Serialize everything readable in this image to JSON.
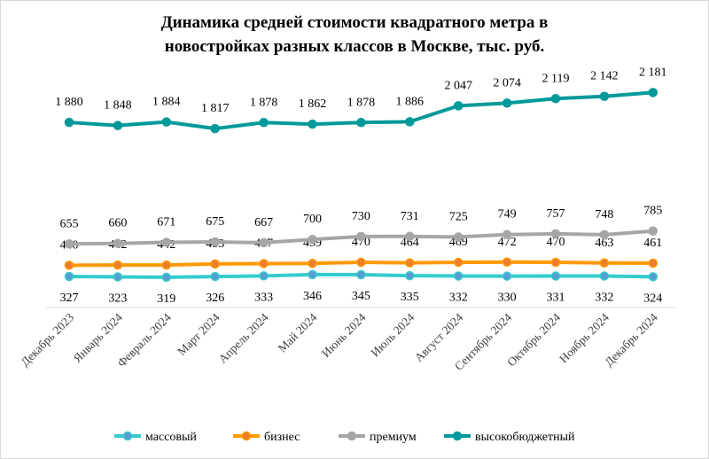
{
  "chart_data": {
    "type": "line",
    "title": [
      "Динамика средней стоимости квадратного метра в",
      "новостройках разных классов в Москве, тыс. руб."
    ],
    "categories": [
      "Декабрь 2023",
      "Январь 2024",
      "Февраль 2024",
      "Март 2024",
      "Апрель 2024",
      "Май 2024",
      "Июнь 2024",
      "Июль 2024",
      "Август 2024",
      "Сентябрь 2024",
      "Октябрь 2024",
      "Ноябрь 2024",
      "Декабрь 2024"
    ],
    "series": [
      {
        "name": "массовый",
        "color": "#33cccc",
        "marker": "#5b9bd5",
        "label_pos": "below",
        "values": [
          327,
          323,
          319,
          326,
          333,
          346,
          345,
          335,
          332,
          330,
          331,
          332,
          324
        ]
      },
      {
        "name": "бизнес",
        "color": "#ff9900",
        "marker": "#ed7d31",
        "label_pos": "above",
        "values": [
          440,
          442,
          442,
          453,
          457,
          459,
          470,
          464,
          469,
          472,
          470,
          463,
          461
        ]
      },
      {
        "name": "премиум",
        "color": "#a6a6a6",
        "marker": "#a6a6a6",
        "label_pos": "above",
        "values": [
          655,
          660,
          671,
          675,
          667,
          700,
          730,
          731,
          725,
          749,
          757,
          748,
          785
        ]
      },
      {
        "name": "высокобюджетный",
        "color": "#009999",
        "marker": "#009999",
        "label_pos": "above",
        "values": [
          1880,
          1848,
          1884,
          1817,
          1878,
          1862,
          1878,
          1886,
          2047,
          2074,
          2119,
          2142,
          2181
        ]
      }
    ],
    "legend": "bottom",
    "grid": false,
    "y_axis_visible": false
  }
}
